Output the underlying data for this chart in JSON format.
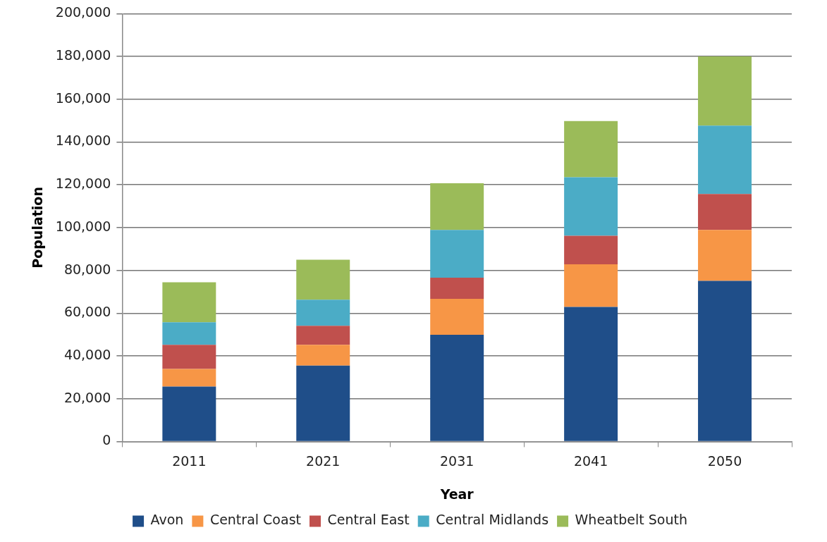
{
  "chart_data": {
    "type": "bar",
    "stacked": true,
    "xlabel": "Year",
    "ylabel": "Population",
    "categories": [
      "2011",
      "2021",
      "2031",
      "2041",
      "2050"
    ],
    "series": [
      {
        "name": "Avon",
        "color": "#1f4e89",
        "values": [
          25700,
          35500,
          49900,
          62900,
          75100
        ]
      },
      {
        "name": "Central Coast",
        "color": "#f79646",
        "values": [
          8200,
          9700,
          16800,
          19900,
          23800
        ]
      },
      {
        "name": "Central East",
        "color": "#c0504d",
        "values": [
          11300,
          8900,
          9900,
          13400,
          16800
        ]
      },
      {
        "name": "Central Midlands",
        "color": "#4bacc6",
        "values": [
          10500,
          12200,
          22300,
          27300,
          32000
        ]
      },
      {
        "name": "Wheatbelt South",
        "color": "#9bbb59",
        "values": [
          18700,
          18700,
          21800,
          26300,
          32300
        ]
      }
    ],
    "ylim": [
      0,
      200000
    ],
    "yticks": [
      {
        "value": 0,
        "label": "0"
      },
      {
        "value": 20000,
        "label": "20,000"
      },
      {
        "value": 40000,
        "label": "40,000"
      },
      {
        "value": 60000,
        "label": "60,000"
      },
      {
        "value": 80000,
        "label": "80,000"
      },
      {
        "value": 100000,
        "label": "100,000"
      },
      {
        "value": 120000,
        "label": "120,000"
      },
      {
        "value": 140000,
        "label": "140,000"
      },
      {
        "value": 160000,
        "label": "160,000"
      },
      {
        "value": 180000,
        "label": "180,000"
      },
      {
        "value": 200000,
        "label": "200,000"
      }
    ],
    "grid": "y",
    "legend": "bottom"
  }
}
